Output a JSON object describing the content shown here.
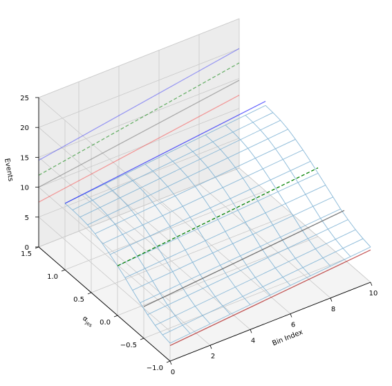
{
  "chart_data": {
    "type": "surface3d",
    "title": "",
    "xlabel": "Bin Index",
    "ylabel": "α_jes",
    "zlabel": "Events",
    "xlim": [
      0,
      10
    ],
    "ylim": [
      -1.0,
      1.5
    ],
    "zlim": [
      0,
      25
    ],
    "x_ticks": [
      "0",
      "2",
      "4",
      "6",
      "8",
      "10"
    ],
    "y_ticks": [
      "−1.0",
      "−0.5",
      "0.0",
      "0.5",
      "1.0",
      "1.5"
    ],
    "z_ticks": [
      "0",
      "5",
      "10",
      "15",
      "20",
      "25"
    ],
    "grid": true,
    "surface": {
      "color": "#7fb3d5",
      "x": [
        0,
        10
      ],
      "alpha": [
        -1.0,
        -0.857,
        -0.714,
        -0.571,
        -0.429,
        -0.286,
        -0.143,
        0.0,
        0.143,
        0.286,
        0.429,
        0.571,
        0.714,
        0.857,
        1.0
      ],
      "events_at_x0": [
        3.0,
        3.3,
        3.8,
        4.5,
        5.4,
        6.4,
        7.4,
        8.3,
        9.1,
        9.8,
        10.4,
        10.8,
        11.0,
        11.1,
        11.1
      ],
      "events_at_x10": [
        5.9,
        6.2,
        6.6,
        7.2,
        7.9,
        8.8,
        9.7,
        10.6,
        11.5,
        12.3,
        13.0,
        13.6,
        14.0,
        14.2,
        14.3
      ]
    },
    "lines": [
      {
        "color": "#0000ff",
        "style": "solid",
        "alpha_jes": 1.5,
        "x": [
          0,
          10
        ],
        "events": [
          14.5,
          20.0
        ],
        "opacity": 0.35
      },
      {
        "color": "#008000",
        "style": "dashed",
        "alpha_jes": 1.5,
        "x": [
          0,
          10
        ],
        "events": [
          12.0,
          17.6
        ],
        "opacity": 0.55
      },
      {
        "color": "#808080",
        "style": "solid",
        "alpha_jes": 1.5,
        "x": [
          0,
          10
        ],
        "events": [
          10.0,
          14.7
        ],
        "opacity": 0.6
      },
      {
        "color": "#ff0000",
        "style": "solid",
        "alpha_jes": 1.5,
        "x": [
          0,
          10
        ],
        "events": [
          7.5,
          12.2
        ],
        "opacity": 0.35
      },
      {
        "color": "#0000ff",
        "style": "solid",
        "alpha_jes": 1.0,
        "x": [
          0,
          10
        ],
        "events": [
          11.1,
          15.0
        ],
        "opacity": 0.6
      },
      {
        "color": "#008000",
        "style": "dashed",
        "alpha_jes": 0.0,
        "x": [
          0,
          10
        ],
        "events": [
          8.3,
          11.5
        ],
        "opacity": 1.0
      },
      {
        "color": "#555555",
        "style": "solid",
        "alpha_jes": -0.5,
        "x": [
          0,
          10
        ],
        "events": [
          5.3,
          8.2
        ],
        "opacity": 0.8
      },
      {
        "color": "#b22222",
        "style": "solid",
        "alpha_jes": -1.0,
        "x": [
          0,
          10
        ],
        "events": [
          2.6,
          5.4
        ],
        "opacity": 0.75
      }
    ]
  }
}
